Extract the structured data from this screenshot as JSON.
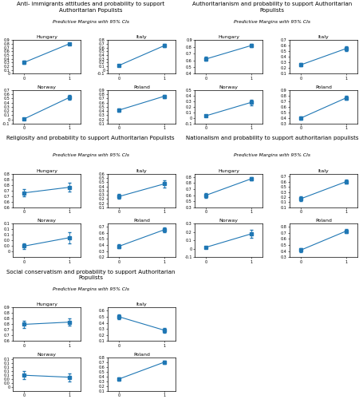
{
  "chart_data": [
    {
      "title": "Anti- immigrants attitudes and probability to support Authoritarian Populists",
      "subtitle": "Predictive Margins with 95% CIs",
      "charts": [
        {
          "type": "line",
          "title": "Hungary",
          "marker": "square",
          "x": [
            0,
            1
          ],
          "values": [
            0.3,
            0.8
          ],
          "error_minus": [
            0.04,
            0.03
          ],
          "error_plus": [
            0.04,
            0.03
          ],
          "xlim": [
            -0.25,
            1.25
          ],
          "xticks": [
            0,
            1
          ],
          "ylim": [
            0.0,
            0.9
          ],
          "yticks": [
            0,
            0.1,
            0.2,
            0.3,
            0.4,
            0.5,
            0.6,
            0.7,
            0.8,
            0.9
          ]
        },
        {
          "type": "line",
          "title": "Italy",
          "marker": "square",
          "x": [
            0,
            1
          ],
          "values": [
            0.12,
            0.65
          ],
          "error_minus": [
            0.03,
            0.04
          ],
          "error_plus": [
            0.03,
            0.04
          ],
          "xlim": [
            -0.25,
            1.25
          ],
          "xticks": [
            0,
            1
          ],
          "ylim": [
            -0.1,
            0.8
          ],
          "yticks": [
            -0.1,
            0,
            0.1,
            0.2,
            0.3,
            0.4,
            0.5,
            0.6,
            0.7,
            0.8
          ]
        },
        {
          "type": "line",
          "title": "Norway",
          "marker": "square",
          "x": [
            0,
            1
          ],
          "values": [
            0.01,
            0.52
          ],
          "error_minus": [
            0.01,
            0.06
          ],
          "error_plus": [
            0.01,
            0.06
          ],
          "xlim": [
            -0.25,
            1.25
          ],
          "xticks": [
            0,
            1
          ],
          "ylim": [
            -0.1,
            0.7
          ],
          "yticks": [
            -0.1,
            0,
            0.1,
            0.2,
            0.3,
            0.4,
            0.5,
            0.6,
            0.7
          ]
        },
        {
          "type": "line",
          "title": "Poland",
          "marker": "square",
          "x": [
            0,
            1
          ],
          "values": [
            0.42,
            0.75
          ],
          "error_minus": [
            0.03,
            0.04
          ],
          "error_plus": [
            0.03,
            0.04
          ],
          "xlim": [
            -0.25,
            1.25
          ],
          "xticks": [
            0,
            1
          ],
          "ylim": [
            0.1,
            0.9
          ],
          "yticks": [
            0.1,
            0.2,
            0.3,
            0.4,
            0.5,
            0.6,
            0.7,
            0.8,
            0.9
          ]
        }
      ]
    },
    {
      "title": "Authoritarianism and probability to support Authoritarian Populists",
      "subtitle": "Predictive Margins with 95% CIs",
      "charts": [
        {
          "type": "line",
          "title": "Hungary",
          "marker": "square",
          "x": [
            0,
            1
          ],
          "values": [
            0.62,
            0.82
          ],
          "error_minus": [
            0.03,
            0.02
          ],
          "error_plus": [
            0.03,
            0.02
          ],
          "xlim": [
            -0.25,
            1.25
          ],
          "xticks": [
            0,
            1
          ],
          "ylim": [
            0.4,
            0.9
          ],
          "yticks": [
            0.4,
            0.5,
            0.6,
            0.7,
            0.8,
            0.9
          ]
        },
        {
          "type": "line",
          "title": "Italy",
          "marker": "square",
          "x": [
            0,
            1
          ],
          "values": [
            0.26,
            0.55
          ],
          "error_minus": [
            0.03,
            0.04
          ],
          "error_plus": [
            0.03,
            0.04
          ],
          "xlim": [
            -0.25,
            1.25
          ],
          "xticks": [
            0,
            1
          ],
          "ylim": [
            0.1,
            0.7
          ],
          "yticks": [
            0.1,
            0.2,
            0.3,
            0.4,
            0.5,
            0.6,
            0.7
          ]
        },
        {
          "type": "line",
          "title": "Norway",
          "marker": "square",
          "x": [
            0,
            1
          ],
          "values": [
            0.04,
            0.28
          ],
          "error_minus": [
            0.02,
            0.05
          ],
          "error_plus": [
            0.02,
            0.05
          ],
          "xlim": [
            -0.25,
            1.25
          ],
          "xticks": [
            0,
            1
          ],
          "ylim": [
            -0.1,
            0.5
          ],
          "yticks": [
            -0.1,
            0,
            0.1,
            0.2,
            0.3,
            0.4,
            0.5
          ]
        },
        {
          "type": "line",
          "title": "Poland",
          "marker": "square",
          "x": [
            0,
            1
          ],
          "values": [
            0.4,
            0.76
          ],
          "error_minus": [
            0.03,
            0.03
          ],
          "error_plus": [
            0.03,
            0.03
          ],
          "xlim": [
            -0.25,
            1.25
          ],
          "xticks": [
            0,
            1
          ],
          "ylim": [
            0.3,
            0.9
          ],
          "yticks": [
            0.3,
            0.4,
            0.5,
            0.6,
            0.7,
            0.8,
            0.9
          ]
        }
      ]
    },
    {
      "title": "Religiosity and probability to support Authoritarian Populists",
      "subtitle": "Predictive Margins with 95% CIs",
      "charts": [
        {
          "type": "line",
          "title": "Hungary",
          "marker": "square",
          "x": [
            0,
            1
          ],
          "values": [
            0.68,
            0.73
          ],
          "error_minus": [
            0.03,
            0.04
          ],
          "error_plus": [
            0.03,
            0.04
          ],
          "xlim": [
            -0.25,
            1.25
          ],
          "xticks": [
            0,
            1
          ],
          "ylim": [
            0.55,
            0.85
          ],
          "yticks": [
            {
              "value": 0.55,
              "label": "0.6"
            },
            0.6,
            {
              "value": 0.65,
              "label": "0.7"
            },
            0.7,
            {
              "value": 0.75,
              "label": "0.8"
            },
            0.8,
            {
              "value": 0.85,
              "label": "0.8"
            }
          ]
        },
        {
          "type": "line",
          "title": "Italy",
          "marker": "square",
          "x": [
            0,
            1
          ],
          "values": [
            0.28,
            0.43
          ],
          "error_minus": [
            0.03,
            0.04
          ],
          "error_plus": [
            0.03,
            0.04
          ],
          "xlim": [
            -0.25,
            1.25
          ],
          "xticks": [
            0,
            1
          ],
          "ylim": [
            0.15,
            0.55
          ],
          "yticks": [
            {
              "value": 0.15,
              "label": "0.1"
            },
            0.2,
            {
              "value": 0.25,
              "label": "0.2"
            },
            0.3,
            {
              "value": 0.35,
              "label": "0.3"
            },
            0.4,
            {
              "value": 0.45,
              "label": "0.5"
            },
            0.5,
            {
              "value": 0.55,
              "label": "0.6"
            }
          ]
        },
        {
          "type": "line",
          "title": "Norway",
          "marker": "square",
          "x": [
            0,
            1
          ],
          "values": [
            0.02,
            0.05
          ],
          "error_minus": [
            0.01,
            0.02
          ],
          "error_plus": [
            0.01,
            0.02
          ],
          "xlim": [
            -0.25,
            1.25
          ],
          "xticks": [
            0,
            1
          ],
          "ylim": [
            -0.02,
            0.1
          ],
          "yticks": [
            0,
            {
              "value": 0.02,
              "label": "0.0"
            },
            {
              "value": 0.04,
              "label": "0.0"
            },
            {
              "value": 0.06,
              "label": "0.1"
            },
            {
              "value": 0.08,
              "label": "0.1"
            },
            0.1
          ]
        },
        {
          "type": "line",
          "title": "Poland",
          "marker": "square",
          "x": [
            0,
            1
          ],
          "values": [
            0.38,
            0.65
          ],
          "error_minus": [
            0.03,
            0.04
          ],
          "error_plus": [
            0.03,
            0.04
          ],
          "xlim": [
            -0.25,
            1.25
          ],
          "xticks": [
            0,
            1
          ],
          "ylim": [
            0.2,
            0.75
          ],
          "yticks": [
            0.2,
            0.3,
            0.4,
            0.5,
            0.6,
            0.7
          ]
        }
      ]
    },
    {
      "title": "Nationalism and probability to support authoritarian populists",
      "subtitle": "Predictive Margins with 95% CIs",
      "charts": [
        {
          "type": "line",
          "title": "Hungary",
          "marker": "square",
          "x": [
            0,
            1
          ],
          "values": [
            0.55,
            0.82
          ],
          "error_minus": [
            0.04,
            0.03
          ],
          "error_plus": [
            0.04,
            0.03
          ],
          "xlim": [
            -0.25,
            1.25
          ],
          "xticks": [
            0,
            1
          ],
          "ylim": [
            0.35,
            0.9
          ],
          "yticks": [
            {
              "value": 0.35,
              "label": "0.3"
            },
            {
              "value": 0.45,
              "label": "0.5"
            },
            {
              "value": 0.55,
              "label": "0.6"
            },
            {
              "value": 0.65,
              "label": "0.7"
            },
            {
              "value": 0.75,
              "label": "0.8"
            },
            {
              "value": 0.85,
              "label": "0.8"
            }
          ]
        },
        {
          "type": "line",
          "title": "Italy",
          "marker": "square",
          "x": [
            0,
            1
          ],
          "values": [
            0.22,
            0.55
          ],
          "error_minus": [
            0.04,
            0.04
          ],
          "error_plus": [
            0.04,
            0.04
          ],
          "xlim": [
            -0.25,
            1.25
          ],
          "xticks": [
            0,
            1
          ],
          "ylim": [
            0.05,
            0.7
          ],
          "yticks": [
            {
              "value": 0.05,
              "label": "0.1"
            },
            {
              "value": 0.15,
              "label": "0.1"
            },
            {
              "value": 0.25,
              "label": "0.2"
            },
            {
              "value": 0.35,
              "label": "0.3"
            },
            {
              "value": 0.45,
              "label": "0.5"
            },
            {
              "value": 0.55,
              "label": "0.6"
            },
            {
              "value": 0.65,
              "label": "0.7"
            }
          ]
        },
        {
          "type": "line",
          "title": "Norway",
          "marker": "square",
          "x": [
            0,
            1
          ],
          "values": [
            0.02,
            0.18
          ],
          "error_minus": [
            0.01,
            0.05
          ],
          "error_plus": [
            0.01,
            0.05
          ],
          "xlim": [
            -0.25,
            1.25
          ],
          "xticks": [
            0,
            1
          ],
          "ylim": [
            -0.1,
            0.3
          ],
          "yticks": [
            -0.1,
            0,
            0.1,
            0.2,
            0.3
          ]
        },
        {
          "type": "line",
          "title": "Poland",
          "marker": "square",
          "x": [
            0,
            1
          ],
          "values": [
            0.42,
            0.73
          ],
          "error_minus": [
            0.03,
            0.03
          ],
          "error_plus": [
            0.03,
            0.03
          ],
          "xlim": [
            -0.25,
            1.25
          ],
          "xticks": [
            0,
            1
          ],
          "ylim": [
            0.3,
            0.85
          ],
          "yticks": [
            0.3,
            0.4,
            0.5,
            0.6,
            0.7,
            0.8
          ]
        }
      ]
    },
    {
      "title": "Social conservatism and probability to support Authoritarian Populists",
      "subtitle": "Predictive Margins with 95% CIs",
      "charts": [
        {
          "type": "line",
          "title": "Hungary",
          "marker": "square",
          "x": [
            0,
            1
          ],
          "values": [
            0.75,
            0.77
          ],
          "error_minus": [
            0.03,
            0.03
          ],
          "error_plus": [
            0.03,
            0.03
          ],
          "xlim": [
            -0.25,
            1.25
          ],
          "xticks": [
            0,
            1
          ],
          "ylim": [
            0.6,
            0.9
          ],
          "yticks": [
            0.6,
            {
              "value": 0.65,
              "label": "0.7"
            },
            0.7,
            {
              "value": 0.75,
              "label": "0.8"
            },
            0.8,
            {
              "value": 0.85,
              "label": "0.8"
            },
            0.9
          ]
        },
        {
          "type": "line",
          "title": "Italy",
          "marker": "square",
          "x": [
            0,
            1
          ],
          "values": [
            0.5,
            0.28
          ],
          "error_minus": [
            0.04,
            0.04
          ],
          "error_plus": [
            0.04,
            0.04
          ],
          "xlim": [
            -0.25,
            1.25
          ],
          "xticks": [
            0,
            1
          ],
          "ylim": [
            0.1,
            0.65
          ],
          "yticks": [
            0.1,
            0.2,
            0.3,
            0.4,
            0.5,
            0.6
          ]
        },
        {
          "type": "line",
          "title": "Norway",
          "marker": "square",
          "x": [
            0,
            1
          ],
          "values": [
            0.06,
            0.05
          ],
          "error_minus": [
            0.02,
            0.02
          ],
          "error_plus": [
            0.02,
            0.02
          ],
          "xlim": [
            -0.25,
            1.25
          ],
          "xticks": [
            0,
            1
          ],
          "ylim": [
            -0.02,
            0.15
          ],
          "yticks": [
            0,
            {
              "value": 0.02,
              "label": "0.0"
            },
            {
              "value": 0.04,
              "label": "0.0"
            },
            {
              "value": 0.06,
              "label": "0.1"
            },
            {
              "value": 0.08,
              "label": "0.1"
            },
            0.1,
            {
              "value": 0.12,
              "label": "0.1"
            },
            {
              "value": 0.14,
              "label": "0.1"
            }
          ]
        },
        {
          "type": "line",
          "title": "Poland",
          "marker": "square",
          "x": [
            0,
            1
          ],
          "values": [
            0.35,
            0.7
          ],
          "error_minus": [
            0.04,
            0.04
          ],
          "error_plus": [
            0.04,
            0.04
          ],
          "xlim": [
            -0.25,
            1.25
          ],
          "xticks": [
            0,
            1
          ],
          "ylim": [
            0.1,
            0.8
          ],
          "yticks": [
            0.1,
            0.2,
            0.3,
            0.4,
            0.5,
            0.6,
            0.7,
            0.8
          ]
        }
      ]
    }
  ]
}
